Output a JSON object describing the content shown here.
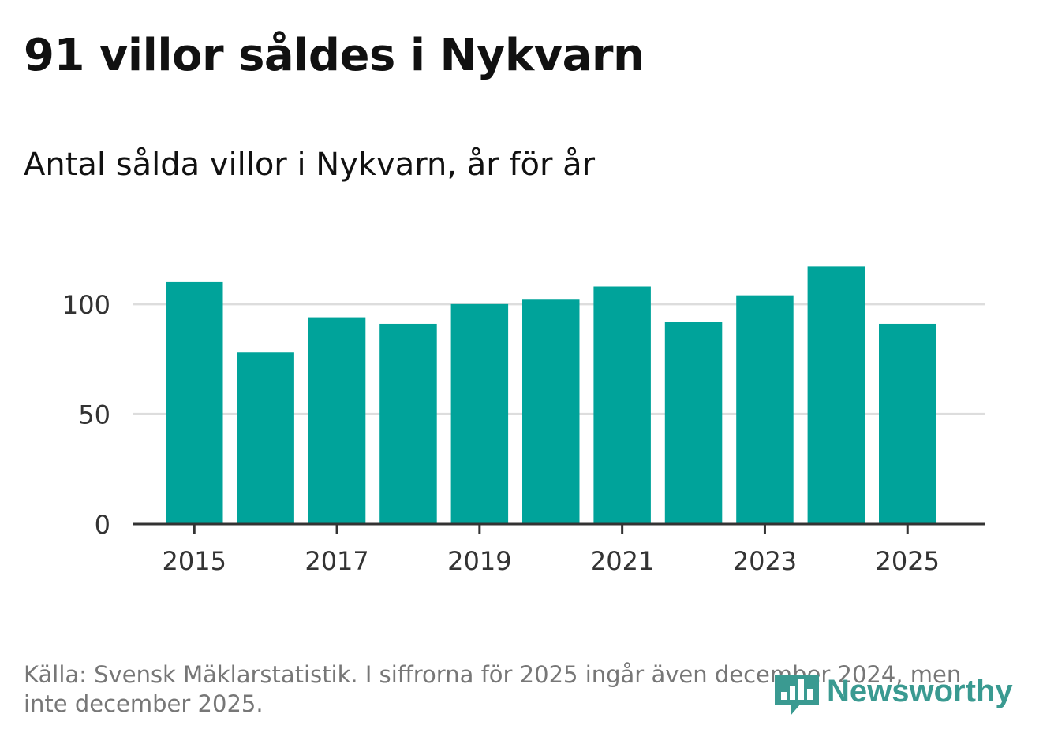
{
  "title": "91 villor såldes i Nykvarn",
  "subtitle": "Antal sålda villor i Nykvarn, år för år",
  "source": "Källa: Svensk Mäklarstatistik. I siffrorna för 2025 ingår även december 2024, men inte december 2025.",
  "logo": {
    "text": "Newsworthy",
    "icon": "newsworthy-bar-icon"
  },
  "colors": {
    "bar": "#00a39a",
    "grid": "#dddddd",
    "axis": "#333333",
    "tick_text": "#333333",
    "logo": "#3a9a91"
  },
  "chart_data": {
    "type": "bar",
    "title": "91 villor såldes i Nykvarn",
    "subtitle": "Antal sålda villor i Nykvarn, år för år",
    "xlabel": "",
    "ylabel": "",
    "categories": [
      "2015",
      "2016",
      "2017",
      "2018",
      "2019",
      "2020",
      "2021",
      "2022",
      "2023",
      "2024",
      "2025"
    ],
    "values": [
      110,
      78,
      94,
      91,
      100,
      102,
      108,
      92,
      104,
      117,
      91
    ],
    "ylim": [
      0,
      120
    ],
    "yticks": [
      0,
      50,
      100
    ],
    "ytick_labels": [
      "0",
      "50",
      "100"
    ],
    "xtick_labels": [
      "2015",
      "2017",
      "2019",
      "2021",
      "2023",
      "2025"
    ],
    "grid": true,
    "legend": "none"
  }
}
